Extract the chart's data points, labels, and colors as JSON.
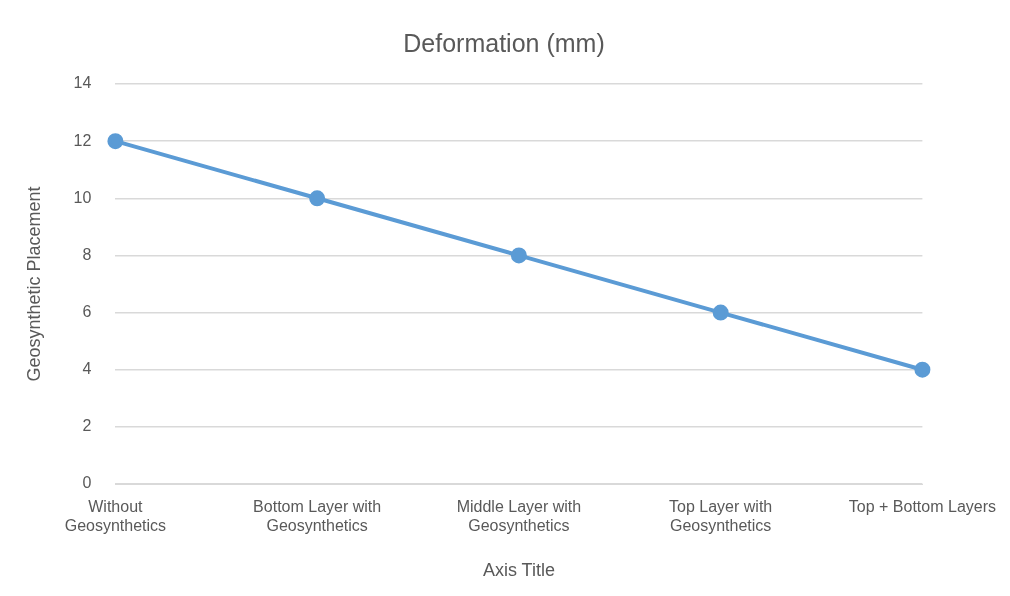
{
  "chart_data": {
    "type": "line",
    "title": "Deformation (mm)",
    "xlabel": "Axis Title",
    "ylabel": "Geosynthetic Placement",
    "categories": [
      "Without Geosynthetics",
      "Bottom Layer with Geosynthetics",
      "Middle Layer with Geosynthetics",
      "Top Layer with Geosynthetics",
      "Top + Bottom Layers"
    ],
    "series": [
      {
        "color": "#5b9bd5",
        "values": [
          12,
          10,
          8,
          6,
          4
        ]
      }
    ],
    "ylim": [
      0,
      14
    ],
    "yticks": [
      0,
      2,
      4,
      6,
      8,
      10,
      12,
      14
    ],
    "grid": "y",
    "legend": false,
    "marker": "circle",
    "line_style": "solid"
  }
}
